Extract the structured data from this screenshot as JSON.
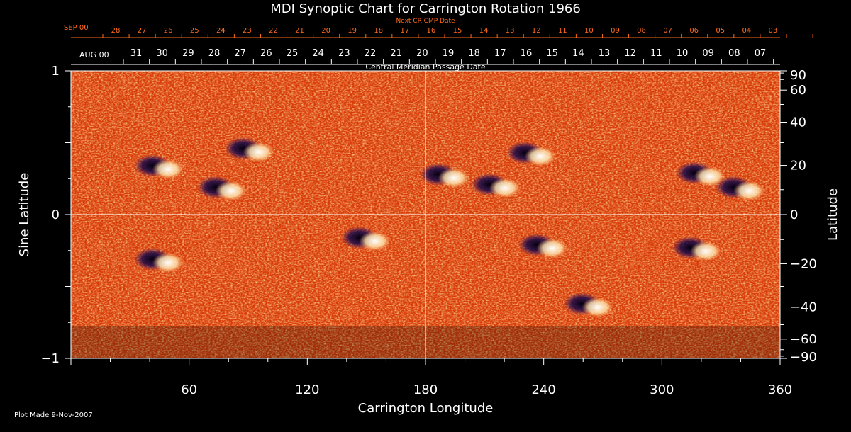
{
  "chart_data": {
    "type": "heatmap",
    "title": "MDI Synoptic Chart for Carrington Rotation 1966",
    "xlabel": "Carrington Longitude",
    "ylabel_left": "Sine Latitude",
    "ylabel_right": "Latitude",
    "xlim": [
      0,
      360
    ],
    "ylim": [
      -1,
      1
    ],
    "x_ticks": [
      60,
      120,
      180,
      240,
      300,
      360
    ],
    "y_ticks_left": [
      {
        "value": 1,
        "label": "1"
      },
      {
        "value": 0,
        "label": "0"
      },
      {
        "value": -1,
        "label": "−1"
      }
    ],
    "y_ticks_right": [
      90,
      60,
      40,
      20,
      0,
      -20,
      -40,
      -60,
      -90
    ],
    "grid": "crosshair at longitude 180 and sine latitude 0",
    "top_axis_next": {
      "label": "Next CR CMP Date",
      "month_label": "SEP 00",
      "days": [
        "28",
        "27",
        "26",
        "25",
        "24",
        "23",
        "22",
        "21",
        "20",
        "19",
        "18",
        "17",
        "16",
        "15",
        "14",
        "13",
        "12",
        "11",
        "10",
        "09",
        "08",
        "07",
        "06",
        "05",
        "04",
        "03"
      ]
    },
    "top_axis_current": {
      "label": "Central Meridian Passage Date",
      "month_label": "AUG 00",
      "days": [
        "31",
        "30",
        "29",
        "28",
        "27",
        "26",
        "25",
        "24",
        "23",
        "22",
        "21",
        "20",
        "19",
        "18",
        "17",
        "16",
        "15",
        "14",
        "13",
        "12",
        "11",
        "10",
        "09",
        "08",
        "07"
      ]
    },
    "colormap": {
      "background": "#ff6a1a",
      "positive": "#ffffff",
      "negative": "#1a0a3a"
    },
    "active_regions": [
      {
        "lon": 91,
        "sinlat": 0.45,
        "polarity": "mixed"
      },
      {
        "lon": 77,
        "sinlat": 0.18,
        "polarity": "mixed"
      },
      {
        "lon": 45,
        "sinlat": 0.33,
        "polarity": "mixed"
      },
      {
        "lon": 190,
        "sinlat": 0.27,
        "polarity": "mixed"
      },
      {
        "lon": 216,
        "sinlat": 0.2,
        "polarity": "mixed"
      },
      {
        "lon": 234,
        "sinlat": 0.42,
        "polarity": "mixed"
      },
      {
        "lon": 320,
        "sinlat": 0.28,
        "polarity": "mixed"
      },
      {
        "lon": 340,
        "sinlat": 0.18,
        "polarity": "mixed"
      },
      {
        "lon": 45,
        "sinlat": -0.32,
        "polarity": "mixed"
      },
      {
        "lon": 150,
        "sinlat": -0.17,
        "polarity": "mixed"
      },
      {
        "lon": 240,
        "sinlat": -0.22,
        "polarity": "mixed"
      },
      {
        "lon": 263,
        "sinlat": -0.63,
        "polarity": "mixed"
      },
      {
        "lon": 318,
        "sinlat": -0.24,
        "polarity": "mixed"
      }
    ]
  },
  "footer": {
    "plot_made": "Plot Made  9-Nov-2007"
  }
}
